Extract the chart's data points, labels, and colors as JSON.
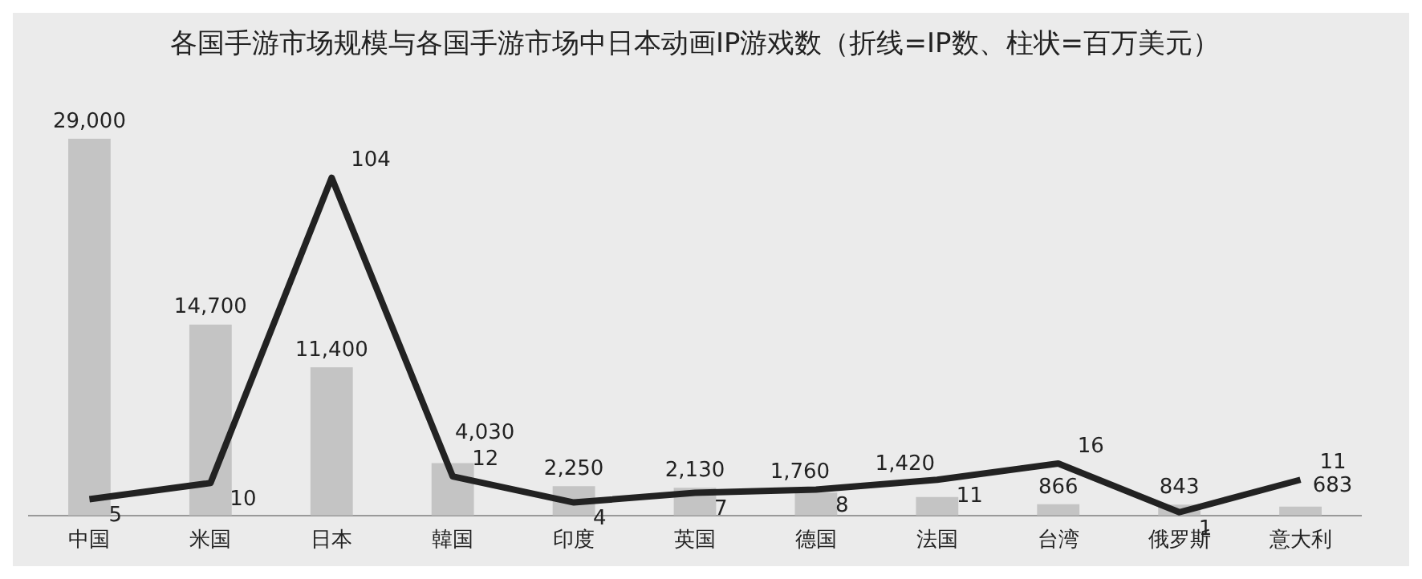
{
  "chart_data": {
    "type": "bar",
    "title": "各国手游市场规模与各国手游市场中日本动画IP游戏数（折线=IP数、柱状=百万美元）",
    "categories": [
      "中国",
      "米国",
      "日本",
      "韓国",
      "印度",
      "英国",
      "德国",
      "法国",
      "台湾",
      "俄罗斯",
      "意大利"
    ],
    "series": [
      {
        "type": "bar",
        "color": "#c4c4c4",
        "values": [
          29000,
          14700,
          11400,
          4030,
          2250,
          2130,
          1760,
          1420,
          866,
          843,
          683
        ],
        "value_labels": [
          "29,000",
          "14,700",
          "11,400",
          "4,030",
          "2,250",
          "2,130",
          "1,760",
          "1,420",
          "866",
          "843",
          "683"
        ]
      },
      {
        "type": "line",
        "axis": "y2",
        "color": "#222222",
        "values": [
          5,
          10,
          104,
          12,
          4,
          7,
          8,
          11,
          16,
          1,
          11
        ]
      }
    ],
    "data_labels": true,
    "legend": false,
    "grid": false,
    "marker": "none",
    "line_style": "solid"
  }
}
